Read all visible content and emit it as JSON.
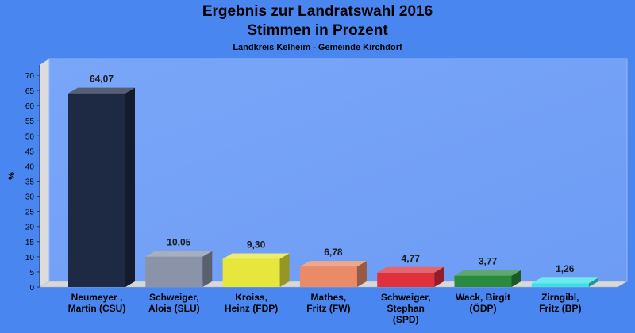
{
  "chart_data": {
    "type": "bar",
    "title": "Ergebnis zur Landratswahl 2016",
    "subtitle": "Stimmen in Prozent",
    "caption": "Landkreis Kelheim - Gemeinde Kirchdorf",
    "ylabel": "%",
    "xlabel": "",
    "ylim": [
      0,
      70
    ],
    "yticks": [
      "0",
      "5",
      "10",
      "15",
      "20",
      "25",
      "30",
      "35",
      "40",
      "45",
      "50",
      "55",
      "60",
      "65",
      "70"
    ],
    "grid": false,
    "categories": [
      [
        "Neumeyer ,",
        "Martin (CSU)"
      ],
      [
        "Schweiger,",
        "Alois (SLU)"
      ],
      [
        "Kroiss,",
        "Heinz (FDP)"
      ],
      [
        "Mathes,",
        "Fritz (FW)"
      ],
      [
        "Schweiger,",
        "Stephan",
        "(SPD)"
      ],
      [
        "Wack, Birgit",
        "(ÖDP)"
      ],
      [
        "Zirngibl,",
        "Fritz (BP)"
      ]
    ],
    "values": [
      64.07,
      10.05,
      9.3,
      6.78,
      4.77,
      3.77,
      1.26
    ],
    "value_labels": [
      "64,07",
      "10,05",
      "9,30",
      "6,78",
      "4,77",
      "3,77",
      "1,26"
    ],
    "colors": [
      "#1e2a44",
      "#8a93a8",
      "#e6e63c",
      "#ea8a66",
      "#e0303c",
      "#2a8a3e",
      "#3ce0e6"
    ]
  }
}
